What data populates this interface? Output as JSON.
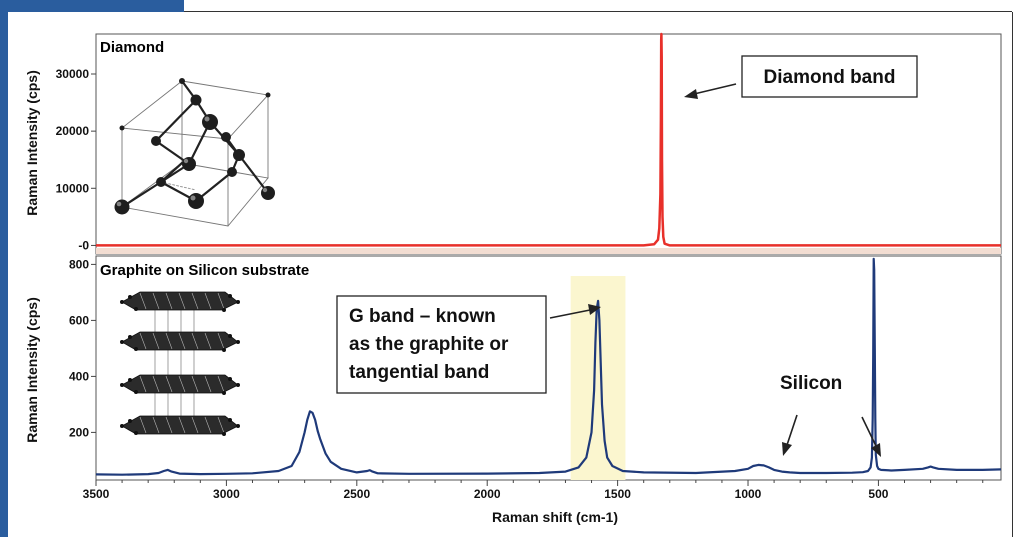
{
  "colors": {
    "frame_blue": "#2a5d9e",
    "diamond_series": "#e8302a",
    "graphite_series": "#1f3a7a",
    "highlight": "#fbf6cf",
    "diamond_baseline_band": "#f2ddd2"
  },
  "chart_data": [
    {
      "type": "line",
      "title": "Diamond",
      "xlabel": "",
      "ylabel": "Raman Intensity (cps)",
      "xlim": [
        3500,
        30
      ],
      "ylim": [
        -1500,
        37000
      ],
      "y_ticks": [
        0,
        10000,
        20000,
        30000
      ],
      "y_tick_labels": [
        "-0",
        "10000",
        "20000",
        "30000"
      ],
      "series": [
        {
          "x": [
            3500,
            3000,
            2500,
            2000,
            1600,
            1400,
            1360,
            1345,
            1340,
            1336,
            1334,
            1333,
            1332,
            1331,
            1330,
            1328,
            1325,
            1320,
            1300,
            1200,
            1000,
            800,
            500,
            30
          ],
          "values": [
            0,
            0,
            0,
            0,
            0,
            0,
            200,
            1000,
            3000,
            9000,
            22000,
            36000,
            37000,
            33000,
            15000,
            5000,
            1500,
            300,
            0,
            0,
            0,
            0,
            0,
            0
          ]
        }
      ],
      "annotations": [
        {
          "text": "Diamond band",
          "x": 1332,
          "y": 27000
        }
      ]
    },
    {
      "type": "line",
      "title": "Graphite on Silicon substrate",
      "xlabel": "Raman shift (cm-1)",
      "ylabel": "Raman Intensity (cps)",
      "xlim": [
        3500,
        30
      ],
      "ylim": [
        30,
        830
      ],
      "x_ticks": [
        3500,
        3000,
        2500,
        2000,
        1500,
        1000,
        500
      ],
      "y_ticks": [
        200,
        400,
        600,
        800
      ],
      "highlight_range": [
        1680,
        1470
      ],
      "series": [
        {
          "x": [
            3500,
            3400,
            3300,
            3260,
            3240,
            3225,
            3210,
            3180,
            3100,
            3000,
            2900,
            2800,
            2750,
            2720,
            2700,
            2690,
            2680,
            2670,
            2660,
            2650,
            2640,
            2620,
            2600,
            2560,
            2500,
            2460,
            2450,
            2440,
            2420,
            2300,
            2000,
            1800,
            1700,
            1650,
            1620,
            1600,
            1590,
            1585,
            1580,
            1575,
            1570,
            1565,
            1560,
            1550,
            1540,
            1520,
            1480,
            1400,
            1200,
            1050,
            1000,
            980,
            960,
            940,
            920,
            900,
            870,
            840,
            800,
            700,
            600,
            560,
            540,
            530,
            525,
            522,
            520,
            518,
            516,
            514,
            512,
            510,
            505,
            500,
            490,
            450,
            400,
            330,
            310,
            300,
            290,
            270,
            200,
            100,
            30
          ],
          "values": [
            50,
            49,
            51,
            55,
            62,
            66,
            60,
            53,
            51,
            52,
            54,
            62,
            80,
            130,
            200,
            245,
            275,
            270,
            245,
            205,
            175,
            125,
            95,
            70,
            57,
            62,
            65,
            60,
            54,
            52,
            53,
            55,
            60,
            75,
            110,
            200,
            350,
            520,
            640,
            670,
            600,
            450,
            300,
            170,
            110,
            80,
            62,
            57,
            55,
            62,
            70,
            80,
            84,
            82,
            75,
            66,
            60,
            57,
            55,
            55,
            56,
            58,
            62,
            75,
            110,
            250,
            470,
            820,
            780,
            500,
            250,
            120,
            80,
            70,
            66,
            64,
            66,
            70,
            75,
            78,
            75,
            70,
            66,
            66,
            68
          ]
        }
      ],
      "annotations": [
        {
          "text": "G band – known as the graphite or tangential band",
          "x": 1580,
          "y": 670
        },
        {
          "text": "Silicon",
          "x": 520,
          "y": 360
        }
      ]
    }
  ]
}
